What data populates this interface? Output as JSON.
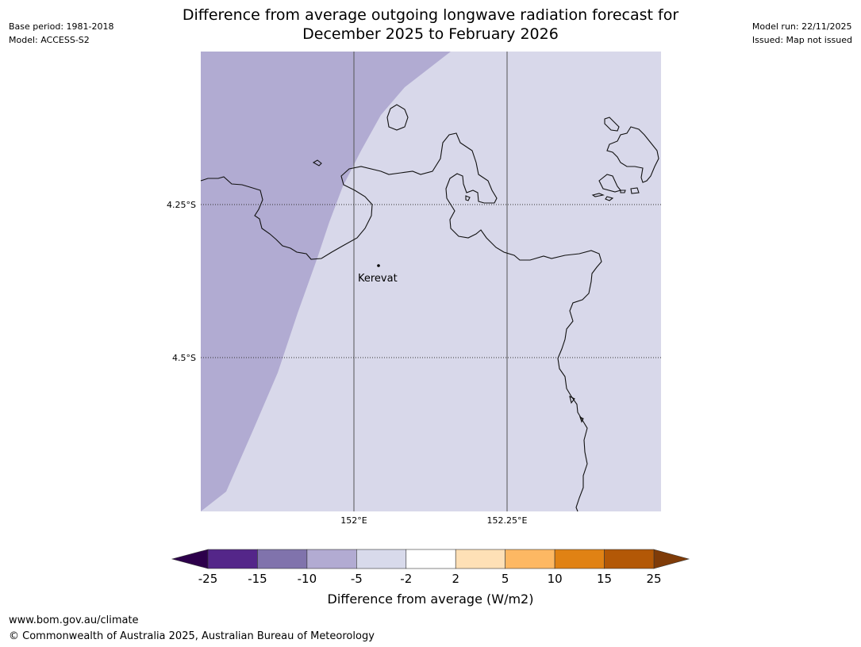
{
  "title_line1": "Difference from average outgoing longwave radiation forecast for",
  "title_line2": "December 2025 to February 2026",
  "base_period": "Base period: 1981-2018",
  "model": "Model: ACCESS-S2",
  "model_run": "Model run: 22/11/2025",
  "issued": "Issued: Map not issued",
  "map": {
    "lat_labels": [
      "4.25°S",
      "4.5°S"
    ],
    "lon_labels": [
      "152°E",
      "152.25°E"
    ],
    "place_label": "Kerevat",
    "region_colors": {
      "west": "#b1abd2",
      "east": "#d8d8ea"
    }
  },
  "colorbar": {
    "label": "Difference from average (W/m2)",
    "ticks": [
      "-25",
      "-15",
      "-10",
      "-5",
      "-2",
      "2",
      "5",
      "10",
      "15",
      "25"
    ],
    "colors": [
      "#542689",
      "#8073ac",
      "#b2abd2",
      "#d8daeb",
      "#ffffff",
      "#fee0b6",
      "#fdb863",
      "#e08214",
      "#b35806"
    ],
    "under_color": "#2d004b",
    "over_color": "#7f3b08"
  },
  "footer_url": "www.bom.gov.au/climate",
  "footer_copyright": "© Commonwealth of Australia 2025, Australian Bureau of Meteorology"
}
